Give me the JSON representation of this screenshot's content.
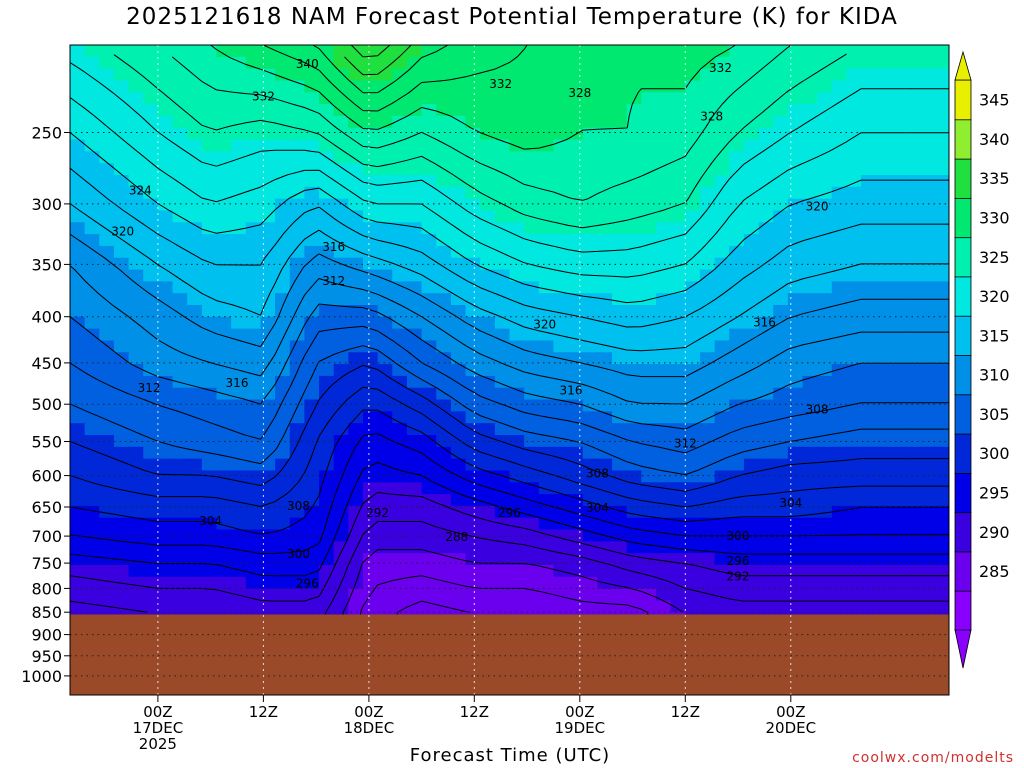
{
  "chart_data": {
    "type": "heatmap",
    "title": "2025121618 NAM Forecast Potential Temperature (K) for KIDA",
    "xlabel": "Forecast Time (UTC)",
    "ylabel": "",
    "y_axis": {
      "ticks": [
        250,
        300,
        350,
        400,
        450,
        500,
        550,
        600,
        650,
        700,
        750,
        800,
        850,
        900,
        950,
        1000
      ],
      "scale": "log-pressure",
      "inverted": true,
      "range": [
        200,
        1050
      ]
    },
    "x_axis": {
      "range_hours": [
        -10,
        90
      ],
      "ticks": [
        {
          "hour": 0,
          "lines": [
            "00Z",
            "17DEC",
            "2025"
          ]
        },
        {
          "hour": 12,
          "lines": [
            "12Z"
          ]
        },
        {
          "hour": 24,
          "lines": [
            "00Z",
            "18DEC"
          ]
        },
        {
          "hour": 36,
          "lines": [
            "12Z"
          ]
        },
        {
          "hour": 48,
          "lines": [
            "00Z",
            "19DEC"
          ]
        },
        {
          "hour": 60,
          "lines": [
            "12Z"
          ]
        },
        {
          "hour": 72,
          "lines": [
            "00Z",
            "20DEC"
          ]
        }
      ]
    },
    "colorbar": {
      "labels": [
        345,
        340,
        335,
        330,
        325,
        320,
        315,
        310,
        305,
        300,
        295,
        290,
        285
      ],
      "colors": [
        "#8a00ff",
        "#6a00ee",
        "#3a00e0",
        "#0000e8",
        "#0028d8",
        "#0060e0",
        "#0090e8",
        "#00c0f0",
        "#00e8e0",
        "#00f0b0",
        "#00e870",
        "#20e040",
        "#90ee30",
        "#e8f000"
      ],
      "range": [
        280,
        350
      ]
    },
    "isotherms_K": [
      284,
      286,
      288,
      290,
      292,
      294,
      296,
      298,
      300,
      302,
      304,
      306,
      308,
      310,
      312,
      314,
      316,
      318,
      320,
      322,
      324,
      326,
      328,
      330,
      332,
      334,
      336,
      338,
      340,
      342
    ],
    "series": [
      {
        "hour": -10,
        "theta": [
          325,
          320,
          316,
          312,
          310,
          308,
          306,
          304,
          302,
          300,
          298,
          295,
          293
        ]
      },
      {
        "hour": 0,
        "theta": [
          328,
          324,
          320,
          316,
          313,
          311,
          308,
          306,
          304,
          301,
          299,
          296,
          294
        ]
      },
      {
        "hour": 6,
        "theta": [
          330,
          326,
          322,
          318,
          315,
          312,
          309,
          307,
          304,
          301,
          299,
          296,
          294
        ]
      },
      {
        "hour": 12,
        "theta": [
          332,
          325,
          321,
          318,
          316,
          313,
          310,
          308,
          305,
          302,
          300,
          297,
          295
        ]
      },
      {
        "hour": 18,
        "theta": [
          334,
          326,
          318,
          313,
          309,
          306,
          304,
          302,
          301,
          300,
          299,
          297,
          295
        ]
      },
      {
        "hour": 24,
        "theta": [
          340,
          330,
          322,
          315,
          309,
          304,
          300,
          297,
          295,
          293,
          291,
          289,
          288
        ]
      },
      {
        "hour": 30,
        "theta": [
          335,
          328,
          322,
          317,
          312,
          308,
          303,
          299,
          296,
          293,
          291,
          289,
          287
        ]
      },
      {
        "hour": 36,
        "theta": [
          333,
          330,
          325,
          320,
          315,
          311,
          307,
          303,
          299,
          295,
          292,
          290,
          288
        ]
      },
      {
        "hour": 42,
        "theta": [
          332,
          331,
          327,
          322,
          317,
          313,
          309,
          305,
          301,
          297,
          293,
          290,
          288
        ]
      },
      {
        "hour": 48,
        "theta": [
          331,
          330,
          328,
          323,
          318,
          314,
          310,
          306,
          303,
          299,
          295,
          291,
          289
        ]
      },
      {
        "hour": 54,
        "theta": [
          330,
          330,
          327,
          323,
          319,
          315,
          312,
          308,
          305,
          301,
          297,
          293,
          290
        ]
      },
      {
        "hour": 60,
        "theta": [
          331,
          329,
          326,
          322,
          318,
          315,
          312,
          309,
          306,
          302,
          298,
          294,
          292
        ]
      },
      {
        "hour": 66,
        "theta": [
          330,
          326,
          322,
          319,
          316,
          313,
          310,
          307,
          304,
          301,
          298,
          295,
          293
        ]
      },
      {
        "hour": 72,
        "theta": [
          328,
          324,
          320,
          317,
          314,
          311,
          309,
          306,
          303,
          301,
          298,
          295,
          293
        ]
      },
      {
        "hour": 80,
        "theta": [
          326,
          322,
          319,
          316,
          313,
          310,
          308,
          305,
          303,
          300,
          298,
          295,
          293
        ]
      }
    ],
    "series_levels_hPa": [
      200,
      250,
      300,
      350,
      400,
      450,
      500,
      550,
      600,
      650,
      700,
      750,
      800
    ],
    "contour_labels": [
      {
        "text": "340",
        "hour": 17,
        "p": 210
      },
      {
        "text": "332",
        "hour": 12,
        "p": 228
      },
      {
        "text": "332",
        "hour": 39,
        "p": 221
      },
      {
        "text": "328",
        "hour": 48,
        "p": 226
      },
      {
        "text": "332",
        "hour": 64,
        "p": 212
      },
      {
        "text": "328",
        "hour": 63,
        "p": 240
      },
      {
        "text": "324",
        "hour": -2,
        "p": 290
      },
      {
        "text": "320",
        "hour": -4,
        "p": 322
      },
      {
        "text": "320",
        "hour": 75,
        "p": 302
      },
      {
        "text": "316",
        "hour": 20,
        "p": 335
      },
      {
        "text": "312",
        "hour": 20,
        "p": 365
      },
      {
        "text": "320",
        "hour": 44,
        "p": 408
      },
      {
        "text": "316",
        "hour": 69,
        "p": 406
      },
      {
        "text": "312",
        "hour": -1,
        "p": 480
      },
      {
        "text": "316",
        "hour": 9,
        "p": 474
      },
      {
        "text": "316",
        "hour": 47,
        "p": 483
      },
      {
        "text": "308",
        "hour": 75,
        "p": 507
      },
      {
        "text": "312",
        "hour": 60,
        "p": 553
      },
      {
        "text": "308",
        "hour": 50,
        "p": 597
      },
      {
        "text": "308",
        "hour": 16,
        "p": 648
      },
      {
        "text": "292",
        "hour": 25,
        "p": 660
      },
      {
        "text": "296",
        "hour": 40,
        "p": 660
      },
      {
        "text": "304",
        "hour": 50,
        "p": 652
      },
      {
        "text": "304",
        "hour": 72,
        "p": 643
      },
      {
        "text": "304",
        "hour": 6,
        "p": 674
      },
      {
        "text": "288",
        "hour": 34,
        "p": 702
      },
      {
        "text": "300",
        "hour": 66,
        "p": 700
      },
      {
        "text": "300",
        "hour": 16,
        "p": 733
      },
      {
        "text": "296",
        "hour": 66,
        "p": 746
      },
      {
        "text": "292",
        "hour": 66,
        "p": 776
      },
      {
        "text": "296",
        "hour": 17,
        "p": 790
      }
    ],
    "ground_surface_hPa": 855,
    "ground_color": "#9a4a28"
  },
  "credit": "coolwx.com/modelts"
}
